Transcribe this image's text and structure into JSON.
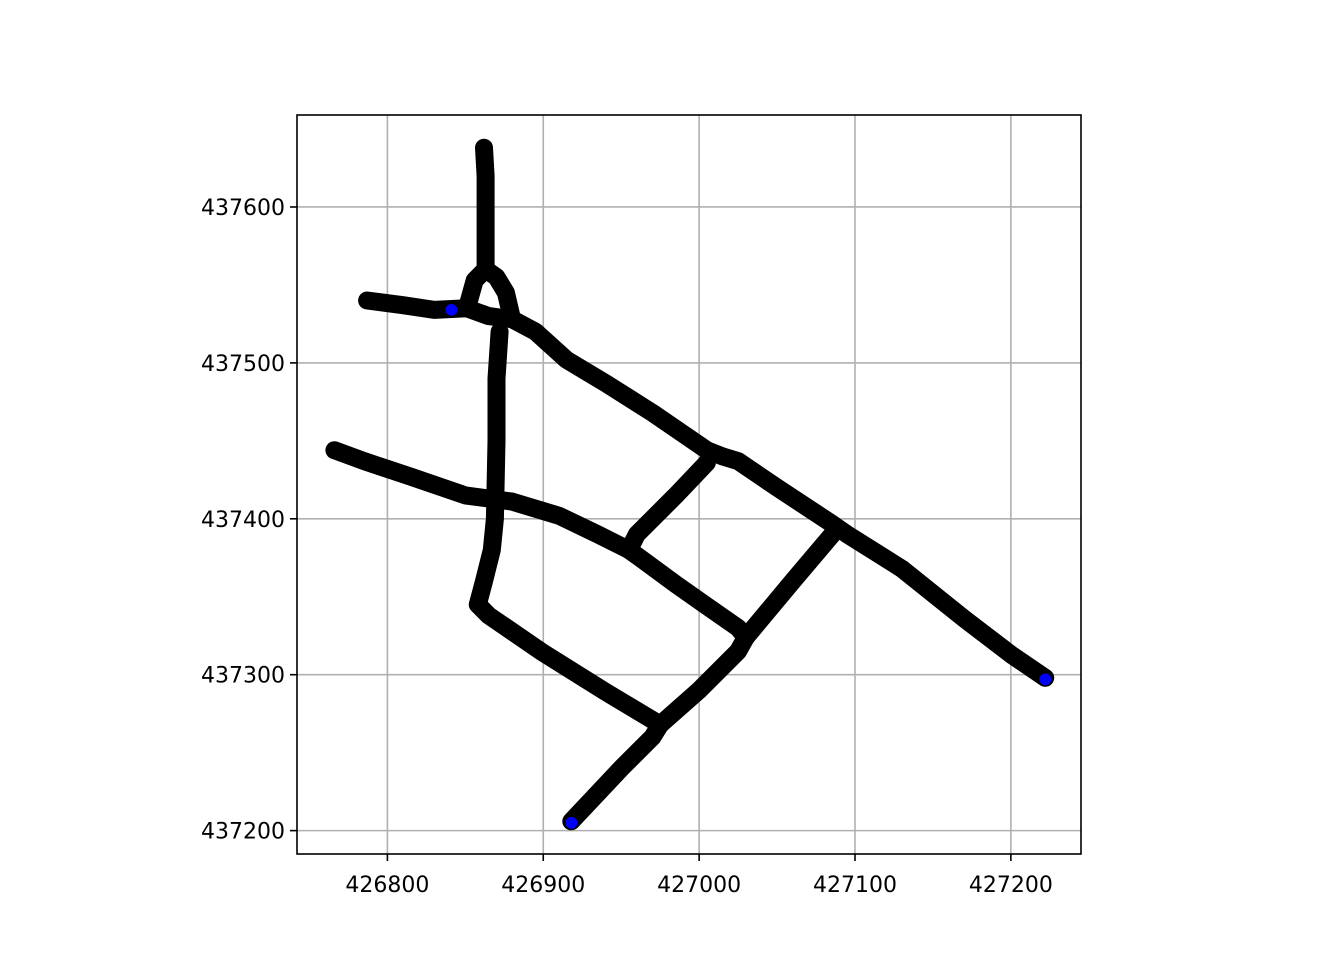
{
  "chart_data": {
    "type": "line",
    "title": "",
    "xlabel": "",
    "ylabel": "",
    "xlim": [
      426742,
      427245
    ],
    "ylim": [
      437185,
      437659
    ],
    "xticks": [
      426800,
      426900,
      427000,
      427100,
      427200
    ],
    "yticks": [
      437200,
      437300,
      437400,
      437500,
      437600
    ],
    "xtick_labels": [
      "426800",
      "426900",
      "427000",
      "427100",
      "427200"
    ],
    "ytick_labels": [
      "437200",
      "437300",
      "437400",
      "437500",
      "437600"
    ],
    "grid": true,
    "line_color": "#000000",
    "point_color": "#0000ff",
    "series": [
      {
        "points": [
          [
            426862,
            437638
          ],
          [
            426863,
            437620
          ],
          [
            426863,
            437590
          ],
          [
            426863,
            437560
          ]
        ]
      },
      {
        "points": [
          [
            426863,
            437560
          ],
          [
            426856,
            437553
          ],
          [
            426851,
            437535
          ]
        ]
      },
      {
        "points": [
          [
            426863,
            437560
          ],
          [
            426870,
            437555
          ],
          [
            426876,
            437545
          ],
          [
            426880,
            437528
          ]
        ]
      },
      {
        "points": [
          [
            426787,
            437540
          ],
          [
            426810,
            437537
          ],
          [
            426830,
            437534
          ],
          [
            426851,
            437535
          ]
        ]
      },
      {
        "points": [
          [
            426851,
            437535
          ],
          [
            426865,
            437530
          ],
          [
            426880,
            437528
          ],
          [
            426895,
            437520
          ],
          [
            426915,
            437502
          ],
          [
            426940,
            437487
          ],
          [
            426970,
            437468
          ],
          [
            427005,
            437444
          ]
        ]
      },
      {
        "points": [
          [
            427005,
            437444
          ],
          [
            427015,
            437440
          ],
          [
            427025,
            437437
          ],
          [
            427050,
            437420
          ],
          [
            427085,
            437397
          ],
          [
            427095,
            437390
          ],
          [
            427130,
            437368
          ],
          [
            427170,
            437336
          ],
          [
            427200,
            437313
          ],
          [
            427222,
            437298
          ]
        ]
      },
      {
        "points": [
          [
            426872,
            437520
          ],
          [
            426870,
            437490
          ],
          [
            426870,
            437450
          ],
          [
            426869,
            437400
          ],
          [
            426867,
            437380
          ],
          [
            426862,
            437360
          ],
          [
            426858,
            437345
          ],
          [
            426865,
            437338
          ],
          [
            426900,
            437314
          ],
          [
            426940,
            437289
          ],
          [
            426975,
            437268
          ]
        ]
      },
      {
        "points": [
          [
            426766,
            437444
          ],
          [
            426785,
            437437
          ],
          [
            426815,
            437427
          ],
          [
            426850,
            437415
          ],
          [
            426880,
            437411
          ],
          [
            426910,
            437402
          ],
          [
            426935,
            437390
          ],
          [
            426955,
            437380
          ],
          [
            426962,
            437375
          ],
          [
            426985,
            437358
          ],
          [
            427005,
            437344
          ],
          [
            427025,
            437330
          ],
          [
            427030,
            437324
          ]
        ]
      },
      {
        "points": [
          [
            427005,
            437436
          ],
          [
            426985,
            437415
          ],
          [
            426960,
            437390
          ],
          [
            426955,
            437380
          ]
        ]
      },
      {
        "points": [
          [
            427088,
            437393
          ],
          [
            427060,
            437360
          ],
          [
            427030,
            437324
          ]
        ]
      },
      {
        "points": [
          [
            427030,
            437324
          ],
          [
            427025,
            437315
          ],
          [
            427000,
            437290
          ],
          [
            426975,
            437268
          ]
        ]
      },
      {
        "points": [
          [
            426975,
            437268
          ],
          [
            426970,
            437260
          ],
          [
            426950,
            437240
          ],
          [
            426935,
            437224
          ],
          [
            426918,
            437206
          ]
        ]
      }
    ],
    "endpoints": [
      [
        426841,
        437534
      ],
      [
        426918,
        437205
      ],
      [
        427222,
        437297
      ]
    ]
  }
}
